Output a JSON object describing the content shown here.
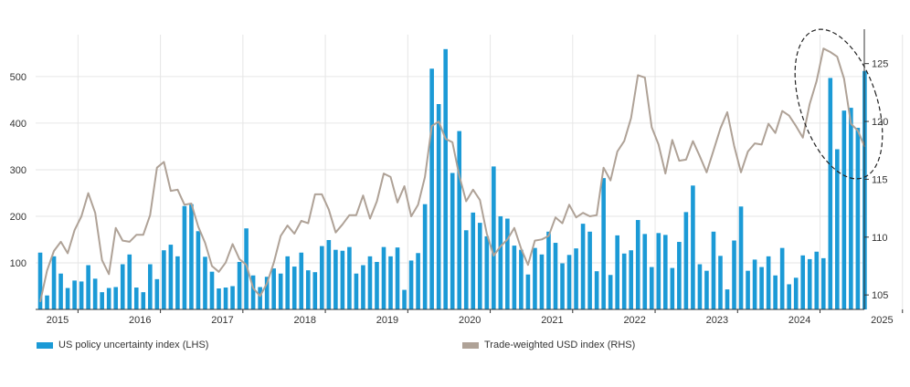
{
  "chart_data": {
    "type": "bar",
    "x_labels": [
      "2015",
      "2016",
      "2017",
      "2018",
      "2019",
      "2020",
      "2021",
      "2022",
      "2023",
      "2024",
      "2025"
    ],
    "y_left": {
      "ylim": [
        0,
        590
      ],
      "ticks": [
        100,
        200,
        300,
        400,
        500
      ]
    },
    "y_right": {
      "ylim": [
        103.75,
        127.5
      ],
      "ticks": [
        105,
        110,
        115,
        120,
        125
      ]
    },
    "colors": {
      "bars": "#1B9AD6",
      "line": "#AFA297",
      "grid": "#E6E6E6",
      "axis": "#333333"
    },
    "series": [
      {
        "name": "US policy uncertainty index (LHS)",
        "type": "bar",
        "axis": "left",
        "values": [
          122,
          30,
          114,
          77,
          46,
          62,
          60,
          95,
          66,
          37,
          46,
          48,
          97,
          118,
          47,
          37,
          97,
          65,
          127,
          139,
          114,
          222,
          226,
          168,
          113,
          81,
          45,
          47,
          50,
          102,
          174,
          73,
          48,
          70,
          88,
          77,
          114,
          92,
          122,
          84,
          80,
          136,
          149,
          128,
          126,
          134,
          77,
          95,
          114,
          102,
          134,
          114,
          133,
          42,
          105,
          121,
          226,
          517,
          441,
          559,
          293,
          383,
          170,
          208,
          186,
          157,
          307,
          200,
          195,
          137,
          128,
          75,
          132,
          118,
          167,
          143,
          99,
          117,
          131,
          184,
          167,
          82,
          282,
          74,
          159,
          120,
          127,
          192,
          162,
          91,
          164,
          160,
          89,
          145,
          209,
          266,
          97,
          83,
          167,
          115,
          43,
          148,
          221,
          83,
          107,
          91,
          114,
          73,
          132,
          54,
          68,
          116,
          108,
          124,
          110,
          497,
          344,
          427,
          433,
          390,
          512
        ]
      },
      {
        "name": "Trade-weighted USD index (RHS)",
        "type": "line",
        "axis": "right",
        "values": [
          104.4,
          107.1,
          108.8,
          109.6,
          108.6,
          110.6,
          111.8,
          113.8,
          112.1,
          108.0,
          106.8,
          110.8,
          109.7,
          109.6,
          110.2,
          110.2,
          111.9,
          116.0,
          116.5,
          114.0,
          114.1,
          112.8,
          112.9,
          110.9,
          109.5,
          107.5,
          107.0,
          107.8,
          109.4,
          108.1,
          107.6,
          105.6,
          104.9,
          106.0,
          107.8,
          110.1,
          111.0,
          110.3,
          111.4,
          111.2,
          113.7,
          113.7,
          112.4,
          110.4,
          111.1,
          111.9,
          111.9,
          113.6,
          111.6,
          113.1,
          115.5,
          115.2,
          113.0,
          114.4,
          111.8,
          112.8,
          115.2,
          119.6,
          120.0,
          118.5,
          118.2,
          115.3,
          113.1,
          114.1,
          113.2,
          110.3,
          108.4,
          109.2,
          109.8,
          110.8,
          109.0,
          107.6,
          109.7,
          109.8,
          110.1,
          111.7,
          111.2,
          112.8,
          111.7,
          112.1,
          111.8,
          111.9,
          116.0,
          114.9,
          117.4,
          118.3,
          120.3,
          124.0,
          123.8,
          119.5,
          118.0,
          115.5,
          118.4,
          116.6,
          116.7,
          118.3,
          117.0,
          115.6,
          117.5,
          119.4,
          120.8,
          117.9,
          115.6,
          117.4,
          118.1,
          118.0,
          119.8,
          119.0,
          120.9,
          120.5,
          119.6,
          118.6,
          121.5,
          123.5,
          126.3,
          126.0,
          125.6,
          123.7,
          119.8,
          119.2,
          117.8
        ]
      }
    ],
    "legend": "bottom"
  }
}
